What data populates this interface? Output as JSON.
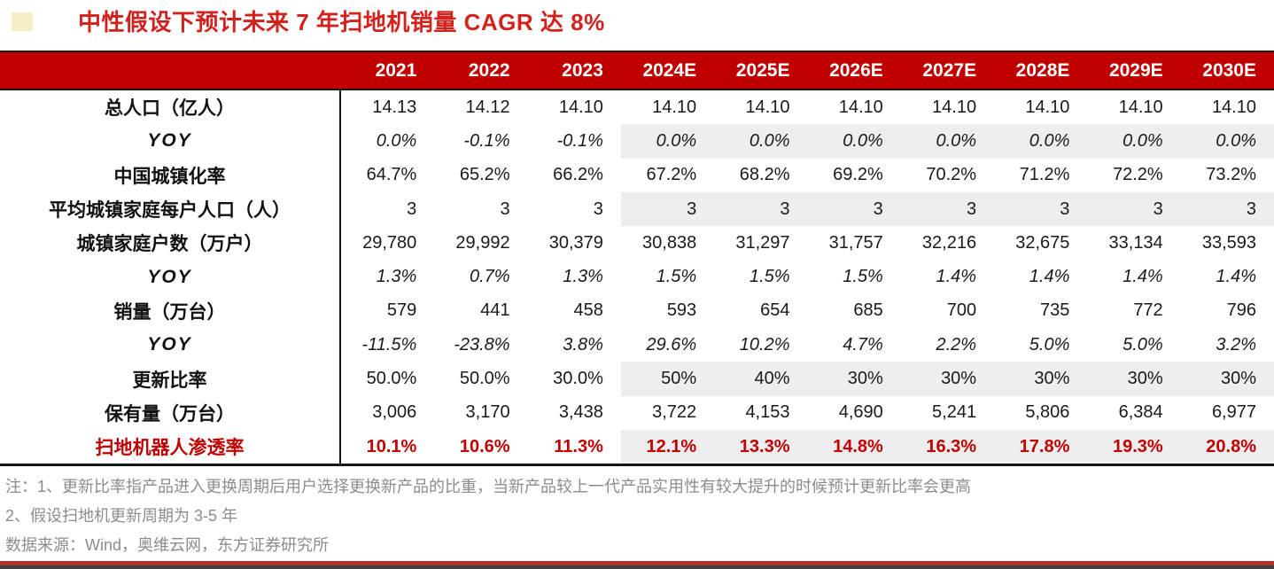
{
  "chart_data": {
    "type": "table",
    "title": "中性假设下预计未来 7 年扫地机销量 CAGR 达 8%",
    "columns": [
      "2021",
      "2022",
      "2023",
      "2024E",
      "2025E",
      "2026E",
      "2027E",
      "2028E",
      "2029E",
      "2030E"
    ],
    "forecast_start_index": 3,
    "rows": [
      {
        "label": "总人口（亿人）",
        "style": "normal",
        "shaded_forecast": false,
        "values": [
          "14.13",
          "14.12",
          "14.10",
          "14.10",
          "14.10",
          "14.10",
          "14.10",
          "14.10",
          "14.10",
          "14.10"
        ]
      },
      {
        "label": "YOY",
        "style": "yoy",
        "shaded_forecast": true,
        "values": [
          "0.0%",
          "-0.1%",
          "-0.1%",
          "0.0%",
          "0.0%",
          "0.0%",
          "0.0%",
          "0.0%",
          "0.0%",
          "0.0%"
        ]
      },
      {
        "label": "中国城镇化率",
        "style": "normal",
        "shaded_forecast": false,
        "values": [
          "64.7%",
          "65.2%",
          "66.2%",
          "67.2%",
          "68.2%",
          "69.2%",
          "70.2%",
          "71.2%",
          "72.2%",
          "73.2%"
        ]
      },
      {
        "label": "平均城镇家庭每户人口（人）",
        "style": "normal",
        "shaded_forecast": true,
        "values": [
          "3",
          "3",
          "3",
          "3",
          "3",
          "3",
          "3",
          "3",
          "3",
          "3"
        ]
      },
      {
        "label": "城镇家庭户数（万户）",
        "style": "normal",
        "shaded_forecast": false,
        "values": [
          "29,780",
          "29,992",
          "30,379",
          "30,838",
          "31,297",
          "31,757",
          "32,216",
          "32,675",
          "33,134",
          "33,593"
        ]
      },
      {
        "label": "YOY",
        "style": "yoy",
        "shaded_forecast": false,
        "values": [
          "1.3%",
          "0.7%",
          "1.3%",
          "1.5%",
          "1.5%",
          "1.5%",
          "1.4%",
          "1.4%",
          "1.4%",
          "1.4%"
        ]
      },
      {
        "label": "销量（万台）",
        "style": "normal",
        "shaded_forecast": false,
        "values": [
          "579",
          "441",
          "458",
          "593",
          "654",
          "685",
          "700",
          "735",
          "772",
          "796"
        ]
      },
      {
        "label": "YOY",
        "style": "yoy",
        "shaded_forecast": false,
        "values": [
          "-11.5%",
          "-23.8%",
          "3.8%",
          "29.6%",
          "10.2%",
          "4.7%",
          "2.2%",
          "5.0%",
          "5.0%",
          "3.2%"
        ]
      },
      {
        "label": "更新比率",
        "style": "normal",
        "shaded_forecast": true,
        "values": [
          "50.0%",
          "50.0%",
          "30.0%",
          "50%",
          "40%",
          "30%",
          "30%",
          "30%",
          "30%",
          "30%"
        ]
      },
      {
        "label": "保有量（万台）",
        "style": "normal",
        "shaded_forecast": false,
        "values": [
          "3,006",
          "3,170",
          "3,438",
          "3,722",
          "4,153",
          "4,690",
          "5,241",
          "5,806",
          "6,384",
          "6,977"
        ]
      },
      {
        "label": "扫地机器人渗透率",
        "style": "highlight",
        "shaded_forecast": true,
        "values": [
          "10.1%",
          "10.6%",
          "11.3%",
          "12.1%",
          "13.3%",
          "14.8%",
          "16.3%",
          "17.8%",
          "19.3%",
          "20.8%"
        ]
      }
    ]
  },
  "notes": {
    "line1": "注：1、更新比率指产品进入更换周期后用户选择更换新产品的比重，当新产品较上一代产品实用性有较大提升的时候预计更新比率会更高",
    "line2": "2、假设扫地机更新周期为 3-5 年",
    "source": "数据来源：Wind，奥维云网，东方证券研究所"
  },
  "colors": {
    "header_bg": "#c00000",
    "title_red": "#d2221e",
    "highlight_red": "#c00000",
    "forecast_shade": "#eeeeee",
    "note_gray": "#8c8c8c",
    "bottom_rule_red": "#b23230"
  }
}
